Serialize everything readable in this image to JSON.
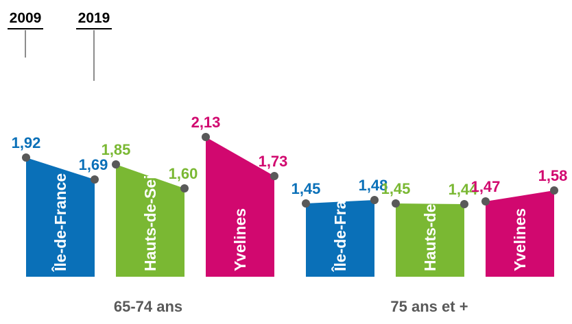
{
  "chart_data": {
    "type": "bar",
    "title": "",
    "years": [
      "2009",
      "2019"
    ],
    "groups": [
      {
        "label": "65-74 ans",
        "bars": [
          {
            "label": "Île-de-France",
            "values": [
              1.92,
              1.69
            ],
            "value_labels": [
              "1,92",
              "1,69"
            ]
          },
          {
            "label": "Hauts-de-Seine",
            "values": [
              1.85,
              1.6
            ],
            "value_labels": [
              "1,85",
              "1,60"
            ]
          },
          {
            "label": "Yvelines",
            "values": [
              2.13,
              1.73
            ],
            "value_labels": [
              "2,13",
              "1,73"
            ]
          }
        ]
      },
      {
        "label": "75 ans et +",
        "bars": [
          {
            "label": "Île-de-France",
            "values": [
              1.45,
              1.48
            ],
            "value_labels": [
              "1,45",
              "1,48"
            ]
          },
          {
            "label": "Hauts-de-Seine",
            "values": [
              1.45,
              1.44
            ],
            "value_labels": [
              "1,45",
              "1,44"
            ]
          },
          {
            "label": "Yvelines",
            "values": [
              1.47,
              1.58
            ],
            "value_labels": [
              "1,47",
              "1,58"
            ]
          }
        ]
      }
    ],
    "colors": {
      "Île-de-France": "#0a70b8",
      "Hauts-de-Seine": "#7ab833",
      "Yvelines": "#d1086f",
      "marker": "#595959"
    },
    "legend": "top-left",
    "grid": false
  }
}
